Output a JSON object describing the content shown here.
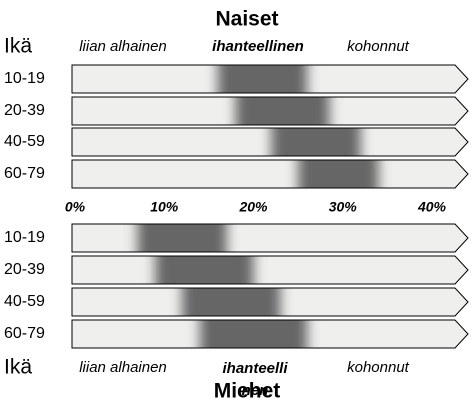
{
  "chart_data": [
    {
      "type": "range",
      "title": "Naiset",
      "y_label": "Ikä",
      "zones": [
        "liian alhainen",
        "ihanteellinen",
        "kohonnut"
      ],
      "categories": [
        "10-19",
        "20-39",
        "40-59",
        "60-79"
      ],
      "low": [
        16,
        18,
        22,
        25
      ],
      "high": [
        26,
        28.5,
        32,
        34
      ],
      "color": "#666666",
      "xlim": [
        0,
        40
      ],
      "xticks": [
        {
          "value": 0,
          "label": "0%"
        },
        {
          "value": 10,
          "label": "10%"
        },
        {
          "value": 20,
          "label": "20%"
        },
        {
          "value": 30,
          "label": "30%"
        },
        {
          "value": 40,
          "label": "40%"
        }
      ]
    },
    {
      "type": "range",
      "title": "Miehet",
      "y_label": "Ikä",
      "zones": [
        "liian alhainen",
        "ihanteellinen",
        "kohonnut"
      ],
      "categories": [
        "10-19",
        "20-39",
        "40-59",
        "60-79"
      ],
      "low": [
        7,
        9,
        12,
        14
      ],
      "high": [
        17,
        20,
        23,
        26
      ],
      "color": "#666666",
      "xlim": [
        0,
        40
      ]
    }
  ]
}
